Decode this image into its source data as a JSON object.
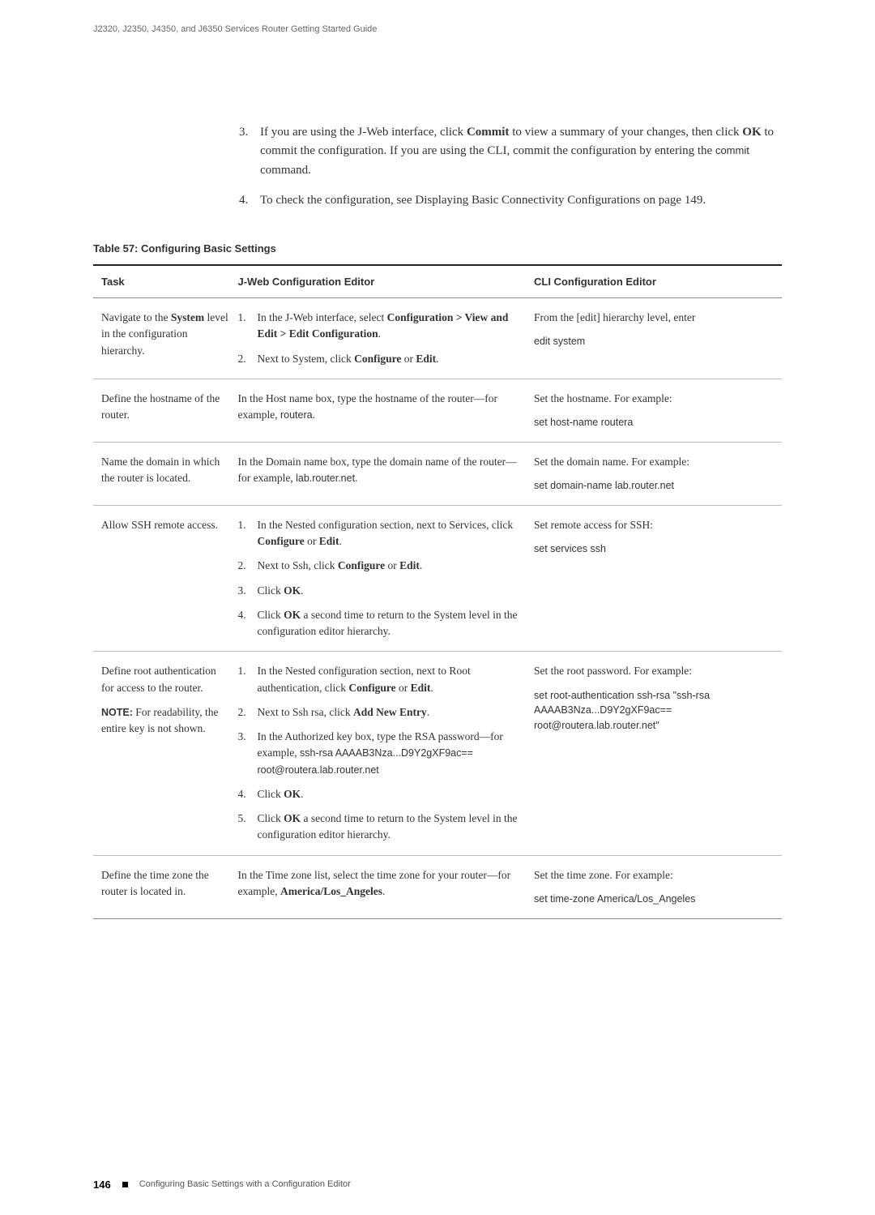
{
  "running_head": "J2320, J2350, J4350, and J6350 Services Router Getting Started Guide",
  "intro": {
    "items": [
      {
        "n": "3.",
        "pre": "If you are using the J-Web interface, click ",
        "b1": "Commit",
        "mid1": " to view a summary of your changes, then click ",
        "b2": "OK",
        "mid2": " to commit the configuration. If you are using the CLI, commit the configuration by entering the ",
        "cmd": "commit",
        "post": " command."
      },
      {
        "n": "4.",
        "text": "To check the configuration, see Displaying Basic Connectivity Configurations on page 149."
      }
    ]
  },
  "table": {
    "caption": "Table 57: Configuring Basic Settings",
    "headers": {
      "task": "Task",
      "jweb": "J-Web Configuration Editor",
      "cli": "CLI Configuration Editor"
    },
    "rows": [
      {
        "task": {
          "pre": "Navigate to the ",
          "b": "System",
          "post": " level in the configuration hierarchy."
        },
        "jweb_steps": [
          {
            "n": "1.",
            "pre": "In the J-Web interface, select ",
            "b1": "Configuration > View and Edit > Edit Configuration",
            "post1": "."
          },
          {
            "n": "2.",
            "pre": "Next to System, click ",
            "b1": "Configure",
            "mid": " or ",
            "b2": "Edit",
            "post2": "."
          }
        ],
        "cli": {
          "l1": "From the [edit] hierarchy level, enter",
          "cmd": "edit system"
        }
      },
      {
        "task_plain": "Define the hostname of the router.",
        "jweb_plain": {
          "pre": "In the Host name box, type the hostname of the router—for example, ",
          "m": "routera",
          "post": "."
        },
        "cli": {
          "l1": "Set the hostname. For example:",
          "cmd": "set host-name routera"
        }
      },
      {
        "task_plain": "Name the domain in which the router is located.",
        "jweb_plain": {
          "pre": "In the Domain name box, type the domain name of the router—for example, ",
          "m": "lab.router.net",
          "post": "."
        },
        "cli": {
          "l1": "Set the domain name. For example:",
          "cmd": "set domain-name lab.router.net"
        }
      },
      {
        "task_plain": "Allow SSH remote access.",
        "jweb_steps": [
          {
            "n": "1.",
            "pre": "In the Nested configuration section, next to Services, click ",
            "b1": "Configure",
            "mid": " or ",
            "b2": "Edit",
            "post2": "."
          },
          {
            "n": "2.",
            "pre": "Next to Ssh, click ",
            "b1": "Configure",
            "mid": " or ",
            "b2": "Edit",
            "post2": "."
          },
          {
            "n": "3.",
            "pre": "Click ",
            "b1": "OK",
            "post1": "."
          },
          {
            "n": "4.",
            "pre": "Click ",
            "b1": "OK",
            "post1": " a second time to return to the System level in the configuration editor hierarchy."
          }
        ],
        "cli": {
          "l1": "Set remote access for SSH:",
          "cmd": "set services ssh"
        }
      },
      {
        "task_html": {
          "p1": "Define root authentication for access to the router.",
          "note_label": "NOTE:",
          "note_rest": " For readability, the entire key is not shown."
        },
        "jweb_steps": [
          {
            "n": "1.",
            "pre": "In the Nested configuration section, next to Root authentication, click ",
            "b1": "Configure",
            "mid": " or ",
            "b2": "Edit",
            "post2": "."
          },
          {
            "n": "2.",
            "pre": "Next to Ssh rsa, click ",
            "b1": "Add New Entry",
            "post1": "."
          },
          {
            "n": "3.",
            "pre": "In the Authorized key box, type the RSA password—for example, ",
            "m": "ssh-rsa AAAAB3Nza...D9Y2gXF9ac== root@routera.lab.router.net"
          },
          {
            "n": "4.",
            "pre": "Click ",
            "b1": "OK",
            "post1": "."
          },
          {
            "n": "5.",
            "pre": "Click ",
            "b1": "OK",
            "post1": " a second time to return to the System level in the configuration editor hierarchy."
          }
        ],
        "cli": {
          "l1": "Set the root password. For example:",
          "cmd": "set root-authentication ssh-rsa \"ssh-rsa AAAAB3Nza...D9Y2gXF9ac== root@routera.lab.router.net\""
        }
      },
      {
        "task_plain": "Define the time zone the router is located in.",
        "jweb_plain": {
          "pre": "In the Time zone list, select the time zone for your router—for example, ",
          "b": "America/Los_Angeles",
          "post": "."
        },
        "cli": {
          "l1": "Set the time zone. For example:",
          "cmd": "set time-zone America/Los_Angeles"
        }
      }
    ]
  },
  "footer": {
    "page": "146",
    "text": "Configuring Basic Settings with a Configuration Editor"
  }
}
